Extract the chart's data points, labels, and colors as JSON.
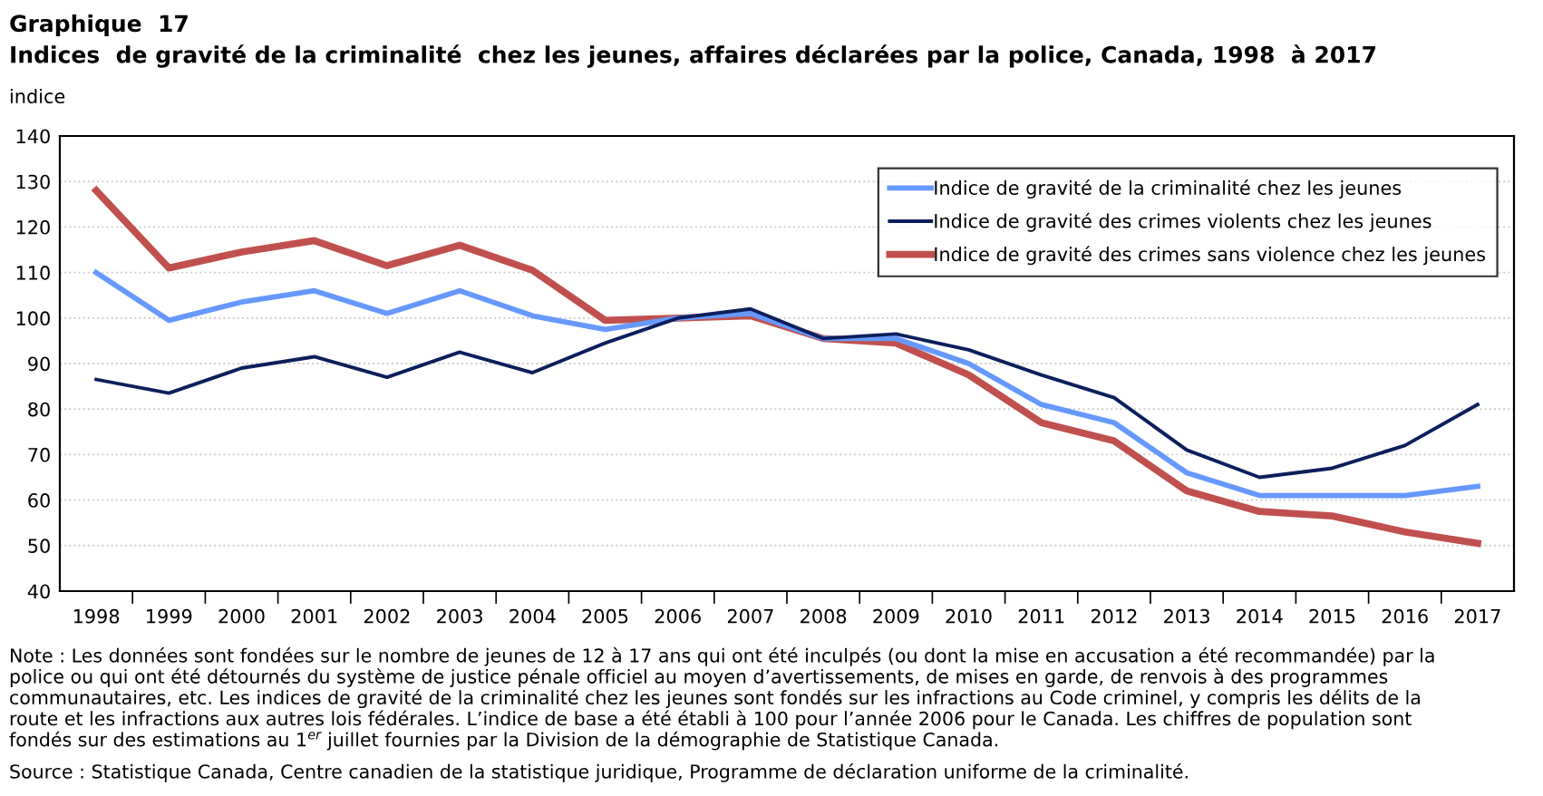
{
  "chart_data": {
    "type": "line",
    "title": "Graphique  17",
    "subtitle": "Indices  de gravité de la criminalité  chez les jeunes, affaires déclarées par la police, Canada, 1998  à 2017",
    "ylabel": "indice",
    "categories": [
      "1998",
      "1999",
      "2000",
      "2001",
      "2002",
      "2003",
      "2004",
      "2005",
      "2006",
      "2007",
      "2008",
      "2009",
      "2010",
      "2011",
      "2012",
      "2013",
      "2014",
      "2015",
      "2016",
      "2017"
    ],
    "series": [
      {
        "name": "Indice de gravité de la criminalité chez les jeunes",
        "color": "#6699ff",
        "values": [
          110,
          99.5,
          103.5,
          106,
          101,
          106,
          100.5,
          97.5,
          100,
          101,
          95.5,
          95.5,
          90,
          81,
          77,
          66,
          61,
          61,
          61,
          63
        ]
      },
      {
        "name": "Indice de gravité des crimes violents chez les jeunes",
        "color": "#0c1f5c",
        "values": [
          86.5,
          83.5,
          89,
          91.5,
          87,
          92.5,
          88,
          94.5,
          100,
          102,
          95.5,
          96.5,
          93,
          87.5,
          82.5,
          71,
          65,
          67,
          72,
          81
        ]
      },
      {
        "name": "Indice de gravité des crimes sans violence chez les jeunes",
        "color": "#c0504d",
        "values": [
          128,
          111,
          114.5,
          117,
          111.5,
          116,
          110.5,
          99.5,
          100,
          100.5,
          95.5,
          94.5,
          87.5,
          77,
          73,
          62,
          57.5,
          56.5,
          53,
          50.5
        ]
      }
    ],
    "ylim": [
      40,
      140
    ],
    "yticks": [
      40,
      50,
      60,
      70,
      80,
      90,
      100,
      110,
      120,
      130,
      140
    ],
    "grid": "y",
    "legend": "top right",
    "marker": "none",
    "line_style": "solid",
    "annotations": [
      "Note : Les données sont fondées sur le nombre de jeunes de 12 à 17 ans qui ont été inculpés (ou dont la mise en accusation a été recommandée) par la\npolice ou qui ont été détournés du système de justice pénale officiel au moyen d’avertissements, de mises en garde, de renvois à des programmes\ncommunautaires, etc. Les indices de gravité de la criminalité chez les jeunes sont fondés sur les infractions au Code criminel, y compris les délits de la\nroute et les infractions aux autres lois fédérales. L’indice de base a été établi à 100 pour l’année 2006 pour le Canada. Les chiffres de population sont\nfondés sur des estimations au 1$^{er}$ juillet fournies par la Division de la démographie de Statistique Canada.",
      "Source : Statistique Canada, Centre canadien de la statistique juridique, Programme de déclaration uniforme de la criminalité."
    ]
  }
}
